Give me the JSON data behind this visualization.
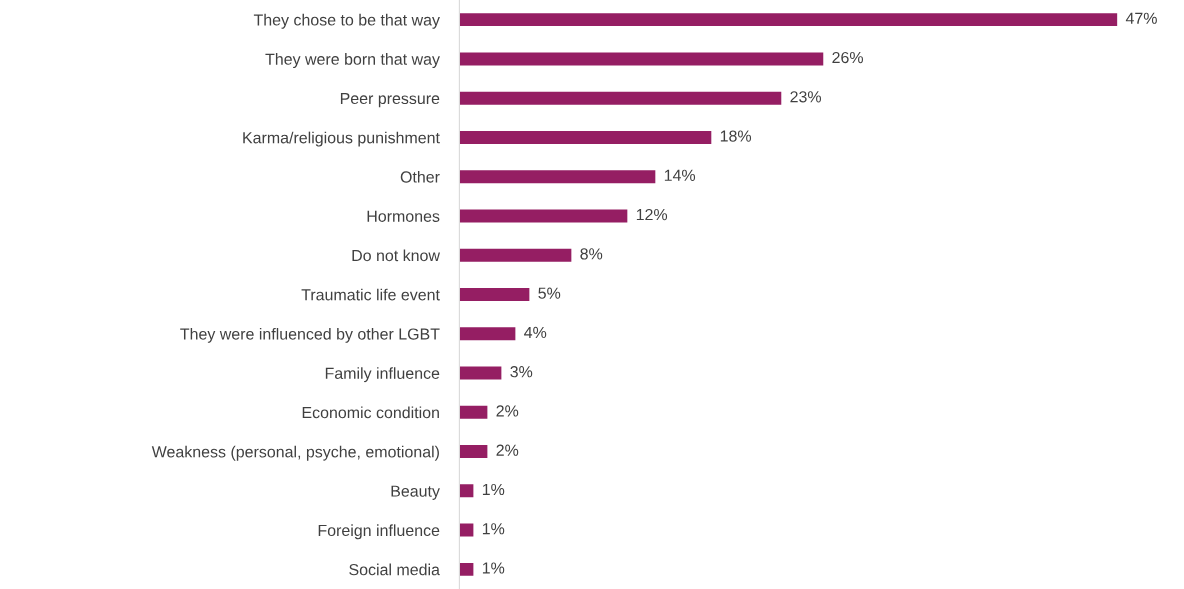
{
  "chart_data": {
    "type": "bar",
    "orientation": "horizontal",
    "categories": [
      "They chose to be that way",
      "They were born that way",
      "Peer pressure",
      "Karma/religious punishment",
      "Other",
      "Hormones",
      "Do not know",
      "Traumatic life event",
      "They were influenced by other LGBT",
      "Family influence",
      "Economic condition",
      "Weakness (personal, psyche, emotional)",
      "Beauty",
      "Foreign influence",
      "Social media"
    ],
    "values": [
      47,
      26,
      23,
      18,
      14,
      12,
      8,
      5,
      4,
      3,
      2,
      2,
      1,
      1,
      1
    ],
    "value_labels": [
      "47%",
      "26%",
      "23%",
      "18%",
      "14%",
      "12%",
      "8%",
      "5%",
      "4%",
      "3%",
      "2%",
      "2%",
      "1%",
      "1%",
      "1%"
    ],
    "color": "#951e63",
    "grid": false,
    "legend": false,
    "tick_labels": "y"
  }
}
